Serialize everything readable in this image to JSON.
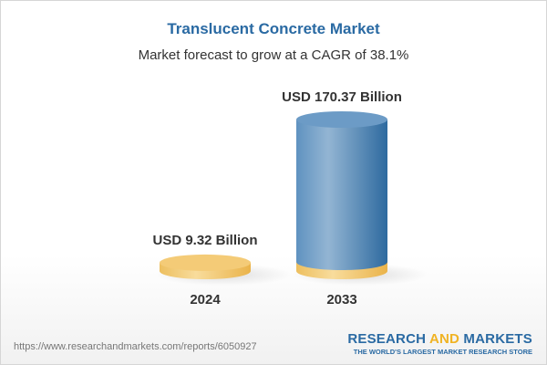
{
  "title": "Translucent Concrete Market",
  "subtitle": "Market forecast to grow at a CAGR of 38.1%",
  "chart_data": {
    "type": "bar",
    "title": "Translucent Concrete Market",
    "subtitle": "Market forecast to grow at a CAGR of 38.1%",
    "categories": [
      "2024",
      "2033"
    ],
    "values": [
      9.32,
      170.37
    ],
    "data_labels": [
      "USD 9.32 Billion",
      "USD 170.37 Billion"
    ],
    "colors": {
      "2024": "#f3c86e",
      "2033": "#5a8fbf",
      "base": "#f3c86e"
    }
  },
  "footer": {
    "url": "https://www.researchandmarkets.com/reports/6050927",
    "logo_part1": "RESEARCH ",
    "logo_part2": "AND",
    "logo_part3": " MARKETS",
    "tagline": "THE WORLD'S LARGEST MARKET RESEARCH STORE"
  }
}
